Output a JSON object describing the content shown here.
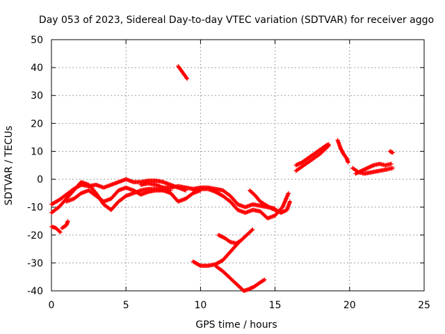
{
  "chart_data": {
    "type": "scatter",
    "title": "Day 053 of 2023, Sidereal Day-to-day VTEC variation (SDTVAR) for receiver aggo",
    "xlabel": "GPS time / hours",
    "ylabel": "SDTVAR / TECUs",
    "xlim": [
      0,
      25
    ],
    "ylim": [
      -40,
      50
    ],
    "xticks": [
      0,
      5,
      10,
      15,
      20,
      25
    ],
    "yticks": [
      -40,
      -30,
      -20,
      -10,
      0,
      10,
      20,
      30,
      40,
      50
    ],
    "grid": true,
    "marker": "+",
    "color": "#ff0000",
    "tracks": [
      {
        "name": "track-1",
        "points": [
          [
            0.0,
            -9
          ],
          [
            0.5,
            -7.5
          ],
          [
            1.0,
            -5.5
          ],
          [
            1.5,
            -3.5
          ],
          [
            2.0,
            -2
          ],
          [
            2.5,
            -2.5
          ],
          [
            3.0,
            -2
          ],
          [
            3.5,
            -3
          ],
          [
            4.0,
            -2
          ],
          [
            4.5,
            -1
          ],
          [
            5.0,
            0
          ],
          [
            5.5,
            -1
          ],
          [
            6.0,
            -1
          ],
          [
            6.5,
            -0.5
          ],
          [
            7.0,
            -0.5
          ],
          [
            7.5,
            -1
          ],
          [
            8.0,
            -2
          ],
          [
            8.5,
            -3
          ],
          [
            9.0,
            -4
          ]
        ]
      },
      {
        "name": "track-2",
        "points": [
          [
            0.0,
            -12
          ],
          [
            0.5,
            -10
          ],
          [
            1.0,
            -7
          ],
          [
            1.5,
            -4
          ],
          [
            2.0,
            -1
          ],
          [
            2.5,
            -2
          ],
          [
            3.0,
            -5
          ],
          [
            3.5,
            -9
          ],
          [
            4.0,
            -11
          ],
          [
            4.5,
            -8
          ],
          [
            5.0,
            -6
          ],
          [
            5.5,
            -5
          ],
          [
            6.0,
            -4
          ],
          [
            6.5,
            -3.5
          ],
          [
            7.0,
            -3.5
          ],
          [
            7.5,
            -4
          ],
          [
            8.0,
            -4
          ]
        ]
      },
      {
        "name": "track-3",
        "points": [
          [
            1.0,
            -8
          ],
          [
            1.5,
            -7
          ],
          [
            2.0,
            -5
          ],
          [
            2.5,
            -4
          ],
          [
            3.0,
            -6
          ],
          [
            3.5,
            -8
          ],
          [
            4.0,
            -7
          ],
          [
            4.5,
            -4
          ],
          [
            5.0,
            -3
          ],
          [
            5.5,
            -4
          ],
          [
            6.0,
            -5.5
          ],
          [
            6.5,
            -4.5
          ],
          [
            7.0,
            -4
          ],
          [
            7.5,
            -4
          ],
          [
            8.0,
            -5
          ],
          [
            8.5,
            -8
          ],
          [
            9.0,
            -7
          ],
          [
            9.5,
            -5
          ],
          [
            10.0,
            -4
          ]
        ]
      },
      {
        "name": "track-4",
        "points": [
          [
            6.0,
            -2
          ],
          [
            6.5,
            -1.5
          ],
          [
            7.0,
            -2
          ],
          [
            7.5,
            -3
          ],
          [
            8.0,
            -3
          ],
          [
            8.5,
            -2.5
          ],
          [
            9.0,
            -3
          ],
          [
            9.5,
            -3.5
          ],
          [
            10.0,
            -3
          ],
          [
            10.5,
            -3
          ],
          [
            11.0,
            -3.5
          ],
          [
            11.5,
            -4
          ],
          [
            12.0,
            -6
          ],
          [
            12.5,
            -9
          ],
          [
            13.0,
            -10
          ],
          [
            13.5,
            -9
          ],
          [
            14.0,
            -9.5
          ],
          [
            14.5,
            -10
          ],
          [
            15.0,
            -10.5
          ]
        ]
      },
      {
        "name": "track-5",
        "points": [
          [
            9.5,
            -4
          ],
          [
            10.0,
            -3.5
          ],
          [
            10.5,
            -3.5
          ],
          [
            11.0,
            -4.5
          ],
          [
            11.5,
            -6
          ],
          [
            12.0,
            -8
          ],
          [
            12.5,
            -11
          ],
          [
            13.0,
            -12
          ],
          [
            13.5,
            -11
          ],
          [
            14.0,
            -11.5
          ],
          [
            14.5,
            -14
          ],
          [
            15.0,
            -13
          ],
          [
            15.5,
            -10
          ],
          [
            15.9,
            -5
          ]
        ]
      },
      {
        "name": "track-6",
        "points": [
          [
            13.3,
            -4
          ],
          [
            13.7,
            -6
          ],
          [
            14.0,
            -8
          ],
          [
            14.3,
            -9
          ],
          [
            14.6,
            -10
          ],
          [
            15.0,
            -11
          ],
          [
            15.4,
            -12
          ],
          [
            15.8,
            -11
          ],
          [
            16.0,
            -8
          ]
        ]
      },
      {
        "name": "track-7",
        "points": [
          [
            0.0,
            -17
          ],
          [
            0.3,
            -17.5
          ],
          [
            0.6,
            -19
          ]
        ]
      },
      {
        "name": "track-8",
        "points": [
          [
            0.7,
            -17.5
          ],
          [
            1.0,
            -16.5
          ],
          [
            1.1,
            -15
          ]
        ]
      },
      {
        "name": "track-9",
        "points": [
          [
            8.5,
            40.5
          ],
          [
            8.7,
            39
          ],
          [
            8.9,
            37.5
          ],
          [
            9.1,
            36
          ]
        ]
      },
      {
        "name": "track-10",
        "points": [
          [
            9.5,
            -29.5
          ],
          [
            10.0,
            -31
          ],
          [
            10.5,
            -31
          ],
          [
            11.0,
            -30.5
          ],
          [
            11.5,
            -29
          ],
          [
            12.0,
            -26
          ],
          [
            12.5,
            -23
          ],
          [
            13.0,
            -20.5
          ],
          [
            13.5,
            -18
          ]
        ]
      },
      {
        "name": "track-11",
        "points": [
          [
            11.2,
            -20
          ],
          [
            11.6,
            -21
          ],
          [
            12.0,
            -22.5
          ],
          [
            12.4,
            -23
          ],
          [
            12.7,
            -22
          ]
        ]
      },
      {
        "name": "track-12",
        "points": [
          [
            11.0,
            -31
          ],
          [
            11.5,
            -33
          ],
          [
            12.0,
            -35.5
          ],
          [
            12.5,
            -38
          ],
          [
            12.9,
            -40
          ],
          [
            13.2,
            -39.5
          ],
          [
            13.6,
            -38.5
          ],
          [
            14.0,
            -37
          ],
          [
            14.3,
            -36
          ]
        ]
      },
      {
        "name": "track-13",
        "points": [
          [
            16.4,
            3
          ],
          [
            16.8,
            4.5
          ],
          [
            17.2,
            6
          ],
          [
            17.6,
            7.5
          ],
          [
            18.0,
            9
          ],
          [
            18.4,
            11
          ],
          [
            18.6,
            12
          ]
        ]
      },
      {
        "name": "track-14",
        "points": [
          [
            16.4,
            5
          ],
          [
            16.8,
            6
          ],
          [
            17.2,
            7.5
          ],
          [
            17.6,
            9
          ],
          [
            18.0,
            10.5
          ],
          [
            18.4,
            12
          ],
          [
            18.6,
            12.5
          ]
        ]
      },
      {
        "name": "track-15",
        "points": [
          [
            19.2,
            14
          ],
          [
            19.4,
            11
          ],
          [
            19.6,
            9
          ],
          [
            19.8,
            7.5
          ],
          [
            19.9,
            6
          ]
        ]
      },
      {
        "name": "track-16",
        "points": [
          [
            20.2,
            4
          ],
          [
            20.6,
            2.5
          ],
          [
            21.0,
            2
          ],
          [
            21.5,
            2.5
          ],
          [
            22.0,
            3
          ],
          [
            22.5,
            3.5
          ],
          [
            22.9,
            4
          ]
        ]
      },
      {
        "name": "track-17",
        "points": [
          [
            20.4,
            2
          ],
          [
            20.8,
            3
          ],
          [
            21.2,
            4
          ],
          [
            21.6,
            5
          ],
          [
            22.0,
            5.5
          ],
          [
            22.4,
            5
          ],
          [
            22.8,
            5.5
          ]
        ]
      },
      {
        "name": "track-18",
        "points": [
          [
            22.7,
            10
          ],
          [
            22.9,
            9.5
          ]
        ]
      }
    ]
  }
}
